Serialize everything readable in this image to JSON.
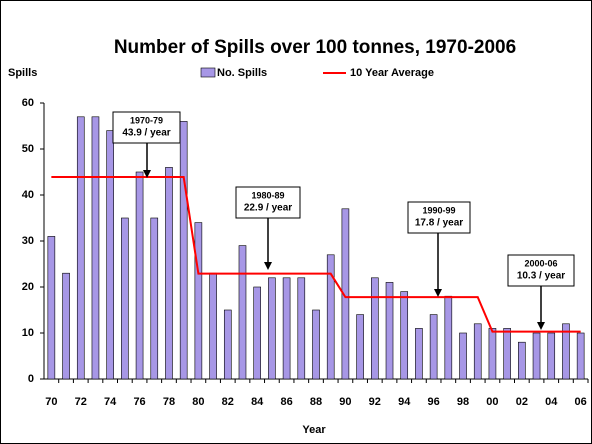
{
  "chart_data": {
    "type": "bar",
    "title": "Number of Spills over 100 tonnes, 1970-2006",
    "y_label": "Spills",
    "x_label": "Year",
    "categories": [
      "70",
      null,
      "72",
      null,
      "74",
      null,
      "76",
      null,
      "78",
      null,
      "80",
      null,
      "82",
      null,
      "84",
      null,
      "86",
      null,
      "88",
      null,
      "90",
      null,
      "92",
      null,
      "94",
      null,
      "96",
      null,
      "98",
      null,
      "00",
      null,
      "02",
      null,
      "04",
      null,
      "06"
    ],
    "series": [
      {
        "name": "No. Spills",
        "type": "bar",
        "color": "#a797e6",
        "values": [
          31,
          23,
          57,
          57,
          54,
          35,
          45,
          35,
          46,
          56,
          34,
          23,
          15,
          29,
          20,
          22,
          22,
          22,
          15,
          27,
          37,
          14,
          22,
          21,
          19,
          11,
          14,
          18,
          10,
          12,
          11,
          11,
          8,
          10,
          10,
          12,
          10
        ]
      },
      {
        "name": "10 Year Average",
        "type": "line",
        "color": "#ff0000",
        "values": [
          43.9,
          43.9,
          43.9,
          43.9,
          43.9,
          43.9,
          43.9,
          43.9,
          43.9,
          43.9,
          22.9,
          22.9,
          22.9,
          22.9,
          22.9,
          22.9,
          22.9,
          22.9,
          22.9,
          22.9,
          17.8,
          17.8,
          17.8,
          17.8,
          17.8,
          17.8,
          17.8,
          17.8,
          17.8,
          17.8,
          10.3,
          10.3,
          10.3,
          10.3,
          10.3,
          10.3,
          10.3
        ]
      }
    ],
    "ylim": [
      0,
      60
    ],
    "yticks": [
      0,
      10,
      20,
      30,
      40,
      50,
      60
    ],
    "grid": false,
    "legend": "top",
    "annotations": [
      {
        "period": "1970-79",
        "text": "43.9 / year"
      },
      {
        "period": "1980-89",
        "text": "22.9 / year"
      },
      {
        "period": "1990-99",
        "text": "17.8 / year"
      },
      {
        "period": "2000-06",
        "text": "10.3 / year"
      }
    ]
  }
}
